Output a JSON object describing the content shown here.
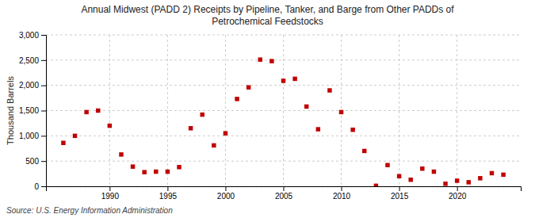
{
  "chart_data": {
    "type": "scatter",
    "title": "Annual Midwest (PADD 2) Receipts by Pipeline, Tanker, and Barge from Other PADDs of\nPetrochemical Feedstocks",
    "ylabel": "Thousand Barrels",
    "source": "Source: U.S. Energy Information Administration",
    "color": "#c00000",
    "marker": "square",
    "grid": true,
    "x": [
      1986,
      1987,
      1988,
      1989,
      1990,
      1991,
      1992,
      1993,
      1994,
      1995,
      1996,
      1997,
      1998,
      1999,
      2000,
      2001,
      2002,
      2003,
      2004,
      2005,
      2006,
      2007,
      2008,
      2009,
      2010,
      2011,
      2012,
      2013,
      2014,
      2015,
      2016,
      2017,
      2018,
      2019,
      2020,
      2021,
      2022,
      2023,
      2024
    ],
    "values": [
      860,
      1000,
      1470,
      1500,
      1200,
      630,
      390,
      280,
      290,
      290,
      380,
      1150,
      1420,
      810,
      1050,
      1730,
      1960,
      2510,
      2480,
      2090,
      2130,
      1580,
      1130,
      1900,
      1470,
      1120,
      700,
      10,
      420,
      200,
      130,
      350,
      290,
      50,
      110,
      80,
      160,
      260,
      230
    ],
    "xlim": [
      1984.5,
      2025.5
    ],
    "xticks": [
      1990,
      1995,
      2000,
      2005,
      2010,
      2015,
      2020
    ],
    "ylim": [
      0,
      3000
    ],
    "yticks": [
      0,
      500,
      {
        "value": 1000,
        "label": "1,000"
      },
      {
        "value": 1500,
        "label": "1,500"
      },
      {
        "value": 2000,
        "label": "2,000"
      },
      {
        "value": 2500,
        "label": "2,500"
      },
      {
        "value": 3000,
        "label": "3,000"
      }
    ]
  }
}
